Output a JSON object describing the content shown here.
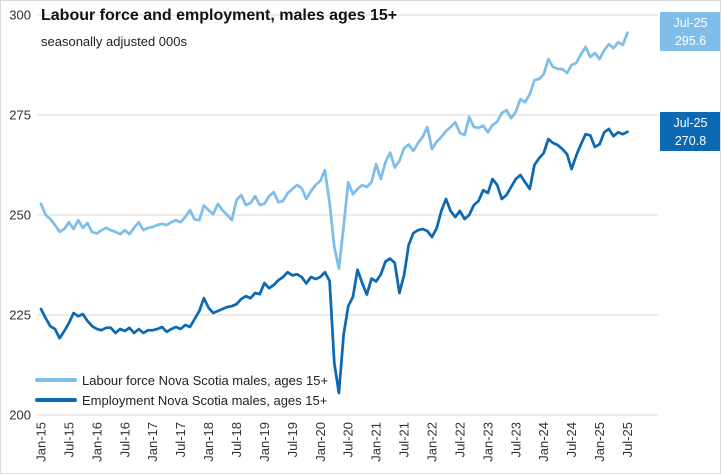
{
  "title": "Labour force and employment, males ages 15+",
  "subtitle": "seasonally adjusted 000s",
  "legend": [
    {
      "label": "Labour force Nova Scotia males, ages 15+",
      "color": "#7FBEEA"
    },
    {
      "label": "Employment Nova Scotia males, ages 15+",
      "color": "#0C6AB4"
    }
  ],
  "data_labels": [
    {
      "series": "labour-force",
      "period": "Jul-25",
      "value": "295.6",
      "color": "#7FBEEA"
    },
    {
      "series": "employment",
      "period": "Jul-25",
      "value": "270.8",
      "color": "#0C6AB4"
    }
  ],
  "colors": {
    "labour_force_line": "#7FBEEA",
    "employment_line": "#0C6AB4",
    "gridline": "#D9D9D9",
    "axis_text": "#333333",
    "background": "#FFFFFF"
  },
  "chart_data": {
    "type": "line",
    "title": "Labour force and employment, males ages 15+",
    "subtitle": "seasonally adjusted 000s",
    "x_unit": "month",
    "x_start": "Jan-2015",
    "x_end": "Jul-2025",
    "points_per_series": 127,
    "xticks": [
      "Jan-15",
      "Jul-15",
      "Jan-16",
      "Jul-16",
      "Jan-17",
      "Jul-17",
      "Jan-18",
      "Jul-18",
      "Jan-19",
      "Jul-19",
      "Jan-20",
      "Jul-20",
      "Jan-21",
      "Jul-21",
      "Jan-22",
      "Jul-22",
      "Jan-23",
      "Jul-23",
      "Jan-24",
      "Jul-24",
      "Jan-25",
      "Jul-25"
    ],
    "xtick_every_n_months": 6,
    "yticks": [
      200,
      225,
      250,
      275,
      300
    ],
    "ylim": [
      200,
      300
    ],
    "grid": "horizontal",
    "legend_position": "bottom-left-inside",
    "series": [
      {
        "name": "Labour force Nova Scotia males, ages 15+",
        "color": "#7FBEEA",
        "last_point_label": "Jul-25 295.6",
        "values": [
          252.8,
          250.0,
          249.0,
          247.5,
          245.8,
          246.5,
          248.2,
          246.5,
          248.7,
          246.8,
          248.0,
          245.7,
          245.4,
          246.2,
          246.8,
          246.2,
          245.8,
          245.2,
          246.2,
          245.2,
          246.8,
          248.2,
          246.2,
          246.8,
          247.0,
          247.5,
          247.8,
          247.5,
          248.2,
          248.7,
          248.2,
          249.5,
          251.2,
          248.9,
          248.7,
          252.4,
          251.2,
          250.2,
          252.8,
          251.2,
          250.0,
          248.7,
          253.7,
          255.0,
          252.5,
          253.0,
          254.7,
          252.5,
          252.8,
          254.7,
          255.7,
          253.2,
          253.5,
          255.5,
          256.5,
          257.5,
          256.7,
          254.0,
          256.0,
          257.5,
          258.5,
          261.2,
          253.0,
          242.0,
          236.6,
          247.0,
          258.2,
          255.2,
          256.5,
          257.5,
          257.0,
          258.2,
          262.7,
          259.0,
          263.2,
          265.6,
          261.9,
          263.5,
          266.7,
          267.6,
          266.0,
          268.0,
          269.5,
          272.0,
          266.5,
          268.3,
          269.5,
          271.0,
          272.0,
          273.2,
          270.5,
          270.0,
          274.5,
          272.0,
          271.8,
          272.3,
          270.7,
          272.5,
          273.3,
          275.5,
          276.2,
          274.2,
          275.8,
          279.0,
          278.2,
          280.2,
          283.7,
          284.0,
          285.2,
          289.0,
          287.0,
          286.5,
          286.5,
          285.5,
          287.5,
          288.0,
          290.2,
          292.0,
          289.5,
          290.5,
          289.0,
          291.2,
          292.7,
          291.7,
          293.2,
          292.5,
          295.6
        ]
      },
      {
        "name": "Employment Nova Scotia males, ages 15+",
        "color": "#0C6AB4",
        "last_point_label": "Jul-25 270.8",
        "values": [
          226.5,
          224.2,
          222.2,
          221.5,
          219.2,
          221.0,
          223.0,
          225.5,
          224.7,
          225.2,
          223.5,
          222.2,
          221.5,
          221.2,
          221.8,
          221.8,
          220.5,
          221.5,
          221.0,
          221.8,
          220.5,
          221.5,
          220.5,
          221.2,
          221.2,
          221.5,
          222.0,
          220.8,
          221.5,
          222.0,
          221.5,
          222.5,
          222.0,
          224.0,
          226.0,
          229.2,
          226.8,
          225.5,
          226.0,
          226.5,
          227.0,
          227.2,
          227.7,
          229.0,
          229.7,
          229.2,
          230.5,
          230.2,
          233.0,
          231.7,
          232.5,
          233.7,
          234.5,
          235.7,
          234.9,
          235.2,
          234.5,
          232.9,
          234.5,
          234.0,
          234.5,
          235.7,
          233.5,
          213.0,
          205.5,
          220.0,
          227.2,
          229.5,
          236.3,
          233.0,
          230.1,
          234.1,
          233.4,
          235.1,
          238.4,
          239.1,
          238.0,
          230.5,
          235.0,
          242.5,
          245.5,
          246.2,
          246.5,
          246.0,
          244.5,
          246.7,
          251.0,
          254.0,
          251.0,
          249.5,
          251.0,
          249.0,
          250.0,
          252.5,
          253.5,
          256.2,
          255.5,
          259.0,
          257.5,
          254.0,
          255.0,
          257.0,
          259.0,
          260.0,
          258.2,
          256.5,
          262.5,
          264.2,
          265.5,
          269.0,
          268.0,
          267.5,
          266.5,
          265.2,
          261.5,
          264.9,
          267.7,
          270.2,
          269.9,
          267.0,
          267.7,
          270.7,
          271.5,
          269.7,
          270.7,
          270.2,
          270.8
        ]
      }
    ]
  }
}
